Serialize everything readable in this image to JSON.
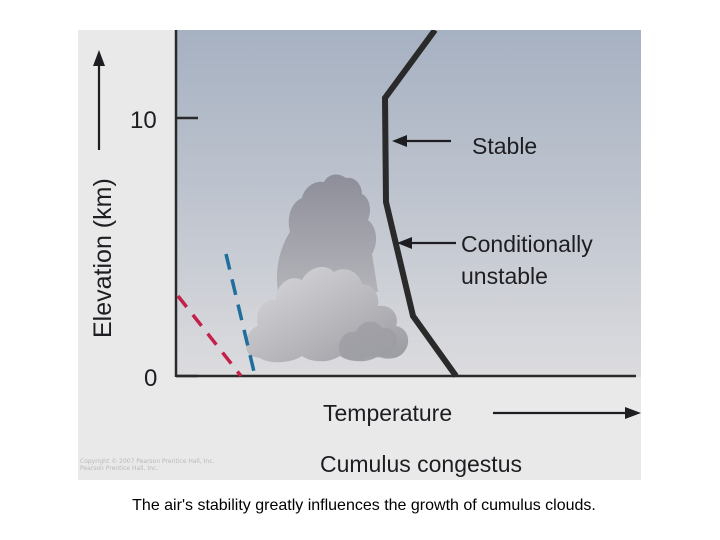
{
  "diagram": {
    "y_axis_label": "Elevation (km)",
    "y_ticks": [
      "10",
      "0"
    ],
    "x_axis_label": "Temperature",
    "annotations": {
      "stable": "Stable",
      "conditional_line1": "Conditionally",
      "conditional_line2": "unstable"
    },
    "cloud_type": "Cumulus congestus",
    "credit_line1": "Copyright © 2007 Pearson Prentice Hall, Inc.",
    "credit_line2": "Pearson Prentice Hall, Inc."
  },
  "colors": {
    "sky_top": "#a6b1c2",
    "sky_bottom": "#d8d9dc",
    "profile_line": "#2a2a2a",
    "dry_adiabat": "#c4204a",
    "moist_adiabat": "#1f6e9e"
  },
  "caption": "The air's stability greatly influences the growth of cumulus clouds."
}
